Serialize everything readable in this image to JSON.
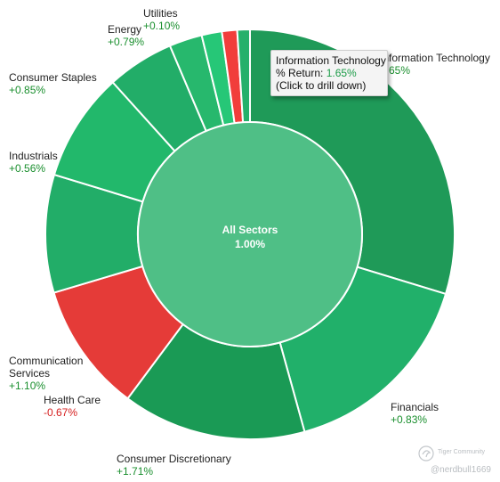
{
  "chart_data": {
    "type": "sunburst",
    "center": {
      "label": "All Sectors",
      "value": "1.00%"
    },
    "sectors": [
      {
        "name": "Information Technology",
        "return": "1.65%",
        "color": "#1f9a58",
        "start": 0.0,
        "end": 0.297
      },
      {
        "name": "Financials",
        "return": "+0.83%",
        "color": "#21b06a",
        "start": 0.297,
        "end": 0.457
      },
      {
        "name": "Consumer Discretionary",
        "return": "+1.71%",
        "color": "#1a9a55",
        "start": 0.457,
        "end": 0.602
      },
      {
        "name": "Health Care",
        "return": "-0.67%",
        "color": "#e53b38",
        "start": 0.602,
        "end": 0.704
      },
      {
        "name": "Communication Services",
        "return": "+1.10%",
        "color": "#22ad68",
        "start": 0.704,
        "end": 0.797
      },
      {
        "name": "Industrials",
        "return": "+0.56%",
        "color": "#22b86b",
        "start": 0.797,
        "end": 0.883
      },
      {
        "name": "Consumer Staples",
        "return": "+0.85%",
        "color": "#22ad68",
        "start": 0.883,
        "end": 0.936
      },
      {
        "name": "Energy",
        "return": "+0.79%",
        "color": "#27b86d",
        "start": 0.936,
        "end": 0.962
      },
      {
        "name": "",
        "return": "",
        "color": "#26c777",
        "start": 0.962,
        "end": 0.978
      },
      {
        "name": "",
        "return": "",
        "color": "#f13e3b",
        "start": 0.978,
        "end": 0.99
      },
      {
        "name": "Utilities",
        "return": "+0.10%",
        "color": "#25b06b",
        "start": 0.99,
        "end": 1.0
      }
    ],
    "positive_color": "#1a8f2e",
    "negative_color": "#d62020",
    "center_color": "#4fbf86"
  },
  "tooltip": {
    "title": "Information Technology",
    "return_label": "% Return:",
    "return_value": "1.65%",
    "hint": "(Click to drill down)"
  },
  "watermark": {
    "brand": "Tiger Community",
    "user": "@nerdbull1669"
  }
}
